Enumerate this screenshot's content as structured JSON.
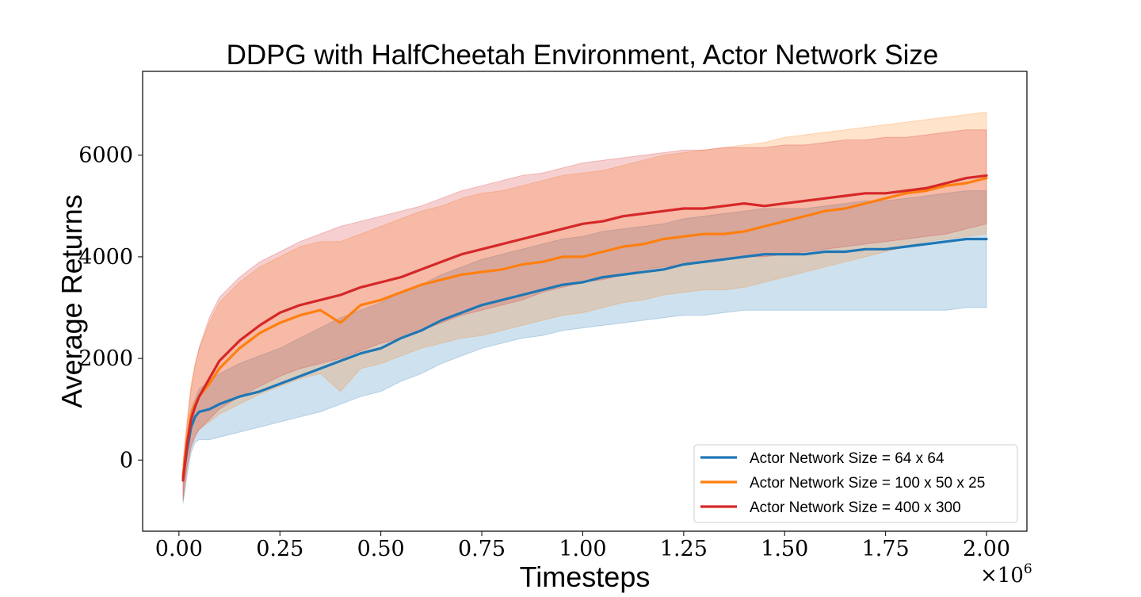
{
  "chart_data": {
    "type": "line",
    "title": "DDPG with HalfCheetah Environment, Actor Network Size",
    "xlabel": "Timesteps",
    "ylabel": "Average Returns",
    "x_scale_label": "×10^6",
    "x_scale_base": "×10",
    "x_scale_exp": "6",
    "xlim": [
      -0.09,
      2.1
    ],
    "ylim": [
      -1400,
      7650
    ],
    "xticks": [
      0.0,
      0.25,
      0.5,
      0.75,
      1.0,
      1.25,
      1.5,
      1.75,
      2.0
    ],
    "xtick_labels": [
      "0.00",
      "0.25",
      "0.50",
      "0.75",
      "1.00",
      "1.25",
      "1.50",
      "1.75",
      "2.00"
    ],
    "yticks": [
      0,
      2000,
      4000,
      6000
    ],
    "ytick_labels": [
      "0",
      "2000",
      "4000",
      "6000"
    ],
    "grid": false,
    "legend_position": "lower-right",
    "series": [
      {
        "name": "Actor Network Size = 64 x 64",
        "color": "#1f77b4",
        "x": [
          0.01,
          0.02,
          0.03,
          0.04,
          0.05,
          0.075,
          0.1,
          0.15,
          0.2,
          0.25,
          0.3,
          0.35,
          0.4,
          0.45,
          0.5,
          0.55,
          0.6,
          0.65,
          0.7,
          0.75,
          0.8,
          0.85,
          0.9,
          0.95,
          1.0,
          1.05,
          1.1,
          1.15,
          1.2,
          1.25,
          1.3,
          1.35,
          1.4,
          1.45,
          1.5,
          1.55,
          1.6,
          1.65,
          1.7,
          1.75,
          1.8,
          1.85,
          1.9,
          1.95,
          2.0
        ],
        "mean": [
          -350,
          200,
          650,
          850,
          950,
          1000,
          1100,
          1250,
          1350,
          1500,
          1650,
          1800,
          1950,
          2100,
          2200,
          2400,
          2550,
          2750,
          2900,
          3050,
          3150,
          3250,
          3350,
          3450,
          3500,
          3600,
          3650,
          3700,
          3750,
          3850,
          3900,
          3950,
          4000,
          4050,
          4050,
          4050,
          4100,
          4100,
          4150,
          4150,
          4200,
          4250,
          4300,
          4350,
          4350
        ],
        "upper": [
          -100,
          500,
          1000,
          1200,
          1400,
          1550,
          1700,
          1900,
          2050,
          2200,
          2400,
          2600,
          2800,
          2950,
          3100,
          3300,
          3450,
          3650,
          3800,
          3950,
          4050,
          4150,
          4250,
          4350,
          4400,
          4500,
          4550,
          4600,
          4650,
          4750,
          4800,
          4850,
          4900,
          4950,
          4950,
          4950,
          5000,
          5050,
          5100,
          5100,
          5150,
          5200,
          5250,
          5300,
          5300
        ],
        "lower": [
          -850,
          -300,
          150,
          350,
          400,
          400,
          450,
          550,
          650,
          750,
          850,
          950,
          1100,
          1250,
          1350,
          1550,
          1700,
          1900,
          2050,
          2200,
          2300,
          2400,
          2450,
          2550,
          2600,
          2650,
          2700,
          2750,
          2800,
          2850,
          2850,
          2900,
          2950,
          2950,
          2950,
          2950,
          2950,
          2950,
          2950,
          2950,
          2950,
          2950,
          2950,
          3000,
          3000
        ]
      },
      {
        "name": "Actor Network Size = 100 x 50 x 25",
        "color": "#ff7f0e",
        "x": [
          0.01,
          0.02,
          0.03,
          0.04,
          0.05,
          0.075,
          0.1,
          0.15,
          0.2,
          0.25,
          0.3,
          0.35,
          0.4,
          0.45,
          0.5,
          0.55,
          0.6,
          0.65,
          0.7,
          0.75,
          0.8,
          0.85,
          0.9,
          0.95,
          1.0,
          1.05,
          1.1,
          1.15,
          1.2,
          1.25,
          1.3,
          1.35,
          1.4,
          1.45,
          1.5,
          1.55,
          1.6,
          1.65,
          1.7,
          1.75,
          1.8,
          1.85,
          1.9,
          1.95,
          2.0
        ],
        "mean": [
          -300,
          400,
          900,
          1100,
          1250,
          1500,
          1800,
          2200,
          2500,
          2700,
          2850,
          2950,
          2700,
          3050,
          3150,
          3300,
          3450,
          3550,
          3650,
          3700,
          3750,
          3850,
          3900,
          4000,
          4000,
          4100,
          4200,
          4250,
          4350,
          4400,
          4450,
          4450,
          4500,
          4600,
          4700,
          4800,
          4900,
          4950,
          5050,
          5150,
          5250,
          5300,
          5400,
          5450,
          5550
        ],
        "upper": [
          0,
          800,
          1500,
          1900,
          2200,
          2700,
          3100,
          3500,
          3800,
          4000,
          4200,
          4300,
          4300,
          4450,
          4600,
          4750,
          4900,
          5000,
          5150,
          5250,
          5300,
          5400,
          5500,
          5600,
          5650,
          5700,
          5800,
          5900,
          6000,
          6050,
          6100,
          6150,
          6200,
          6250,
          6350,
          6400,
          6450,
          6500,
          6550,
          6600,
          6650,
          6700,
          6750,
          6800,
          6850
        ],
        "lower": [
          -700,
          -100,
          300,
          500,
          600,
          750,
          900,
          1100,
          1300,
          1450,
          1600,
          1700,
          1350,
          1800,
          1900,
          2050,
          2200,
          2300,
          2400,
          2450,
          2550,
          2650,
          2750,
          2850,
          2900,
          3000,
          3100,
          3150,
          3250,
          3300,
          3350,
          3350,
          3400,
          3500,
          3600,
          3700,
          3800,
          3900,
          4000,
          4100,
          4200,
          4300,
          4350,
          4400,
          4450
        ]
      },
      {
        "name": "Actor Network Size = 400 x 300",
        "color": "#d62728",
        "x": [
          0.01,
          0.02,
          0.03,
          0.04,
          0.05,
          0.075,
          0.1,
          0.15,
          0.2,
          0.25,
          0.3,
          0.35,
          0.4,
          0.45,
          0.5,
          0.55,
          0.6,
          0.65,
          0.7,
          0.75,
          0.8,
          0.85,
          0.9,
          0.95,
          1.0,
          1.05,
          1.1,
          1.15,
          1.2,
          1.25,
          1.3,
          1.35,
          1.4,
          1.45,
          1.5,
          1.55,
          1.6,
          1.65,
          1.7,
          1.75,
          1.8,
          1.85,
          1.9,
          1.95,
          2.0
        ],
        "mean": [
          -400,
          300,
          800,
          1050,
          1250,
          1600,
          1950,
          2350,
          2650,
          2900,
          3050,
          3150,
          3250,
          3400,
          3500,
          3600,
          3750,
          3900,
          4050,
          4150,
          4250,
          4350,
          4450,
          4550,
          4650,
          4700,
          4800,
          4850,
          4900,
          4950,
          4950,
          5000,
          5050,
          5000,
          5050,
          5100,
          5150,
          5200,
          5250,
          5250,
          5300,
          5350,
          5450,
          5550,
          5600
        ],
        "upper": [
          -100,
          700,
          1400,
          1850,
          2200,
          2800,
          3200,
          3600,
          3900,
          4100,
          4300,
          4450,
          4600,
          4700,
          4800,
          4900,
          5000,
          5150,
          5300,
          5400,
          5500,
          5600,
          5650,
          5750,
          5850,
          5900,
          5950,
          6000,
          6050,
          6100,
          6100,
          6150,
          6150,
          6150,
          6200,
          6200,
          6250,
          6300,
          6300,
          6350,
          6350,
          6400,
          6450,
          6500,
          6500
        ],
        "lower": [
          -800,
          -150,
          250,
          450,
          600,
          800,
          1000,
          1250,
          1450,
          1650,
          1800,
          1900,
          2000,
          2150,
          2300,
          2400,
          2550,
          2700,
          2850,
          2950,
          3050,
          3150,
          3300,
          3400,
          3500,
          3550,
          3650,
          3750,
          3800,
          3850,
          3900,
          3950,
          4000,
          4000,
          4050,
          4100,
          4150,
          4200,
          4250,
          4300,
          4350,
          4400,
          4450,
          4550,
          4650
        ]
      }
    ]
  }
}
